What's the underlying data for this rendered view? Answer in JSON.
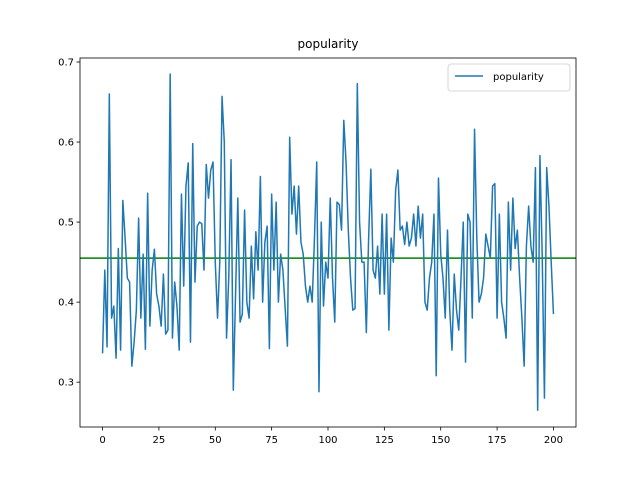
{
  "chart_data": {
    "type": "line",
    "title": "popularity",
    "xlabel": "",
    "ylabel": "",
    "xlim": [
      -10,
      210
    ],
    "ylim": [
      0.244,
      0.705
    ],
    "xticks": [
      0,
      25,
      50,
      75,
      100,
      125,
      150,
      175,
      200
    ],
    "yticks": [
      0.3,
      0.4,
      0.5,
      0.6,
      0.7
    ],
    "grid": false,
    "legend": {
      "position": "top-right",
      "entries": [
        "popularity"
      ]
    },
    "series": [
      {
        "name": "popularity",
        "color": "#1f77b4",
        "x_start": 0,
        "x_step": 1,
        "values": [
          0.336,
          0.44,
          0.344,
          0.66,
          0.38,
          0.395,
          0.33,
          0.467,
          0.34,
          0.527,
          0.48,
          0.43,
          0.425,
          0.32,
          0.35,
          0.39,
          0.505,
          0.38,
          0.46,
          0.341,
          0.536,
          0.37,
          0.44,
          0.466,
          0.41,
          0.395,
          0.37,
          0.435,
          0.36,
          0.365,
          0.685,
          0.355,
          0.425,
          0.395,
          0.34,
          0.535,
          0.42,
          0.545,
          0.574,
          0.35,
          0.598,
          0.425,
          0.495,
          0.5,
          0.498,
          0.44,
          0.572,
          0.53,
          0.565,
          0.575,
          0.45,
          0.38,
          0.45,
          0.657,
          0.6,
          0.355,
          0.433,
          0.578,
          0.29,
          0.41,
          0.53,
          0.375,
          0.385,
          0.515,
          0.4,
          0.38,
          0.47,
          0.404,
          0.488,
          0.44,
          0.557,
          0.4,
          0.475,
          0.495,
          0.342,
          0.535,
          0.44,
          0.525,
          0.4,
          0.46,
          0.44,
          0.392,
          0.345,
          0.606,
          0.51,
          0.545,
          0.485,
          0.545,
          0.475,
          0.46,
          0.42,
          0.4,
          0.42,
          0.4,
          0.48,
          0.575,
          0.288,
          0.5,
          0.395,
          0.45,
          0.43,
          0.53,
          0.43,
          0.375,
          0.525,
          0.522,
          0.49,
          0.627,
          0.575,
          0.49,
          0.43,
          0.39,
          0.392,
          0.673,
          0.5,
          0.45,
          0.45,
          0.362,
          0.478,
          0.566,
          0.44,
          0.43,
          0.47,
          0.41,
          0.51,
          0.41,
          0.51,
          0.365,
          0.48,
          0.45,
          0.54,
          0.565,
          0.49,
          0.495,
          0.472,
          0.5,
          0.47,
          0.48,
          0.51,
          0.47,
          0.52,
          0.48,
          0.51,
          0.4,
          0.39,
          0.43,
          0.45,
          0.51,
          0.308,
          0.555,
          0.46,
          0.43,
          0.38,
          0.49,
          0.39,
          0.34,
          0.435,
          0.39,
          0.365,
          0.43,
          0.5,
          0.325,
          0.51,
          0.5,
          0.38,
          0.616,
          0.48,
          0.4,
          0.41,
          0.43,
          0.485,
          0.47,
          0.455,
          0.545,
          0.548,
          0.38,
          0.51,
          0.4,
          0.38,
          0.355,
          0.525,
          0.44,
          0.53,
          0.467,
          0.49,
          0.43,
          0.38,
          0.32,
          0.47,
          0.52,
          0.47,
          0.45,
          0.568,
          0.265,
          0.583,
          0.46,
          0.28,
          0.568,
          0.52,
          0.45,
          0.385
        ]
      }
    ],
    "hlines": [
      {
        "y": 0.455,
        "color": "#008000"
      }
    ]
  }
}
